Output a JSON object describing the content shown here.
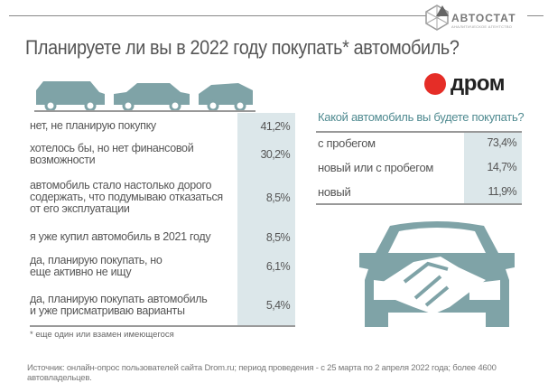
{
  "header": {
    "brand": "АВТОСТАТ",
    "brand_sub": "АНАЛИТИЧЕСКОЕ АГЕНТСТВО",
    "title": "Планируете ли вы в 2022 году покупать* автомобиль?",
    "partner": "дром"
  },
  "colors": {
    "teal": "#7fa3a7",
    "shade": "#dce7ea",
    "accent_text": "#4f8a90",
    "drom_red": "#e52d27"
  },
  "chart_data": [
    {
      "type": "table",
      "title": "Планируете ли вы в 2022 году покупать* автомобиль?",
      "rows": [
        {
          "label": "нет, не планирую покупку",
          "value": "41,2%"
        },
        {
          "label": "хотелось бы, но нет финансовой возможности",
          "value": "30,2%"
        },
        {
          "label": "автомобиль стало настолько дорого содержать, что подумываю отказаться от его эксплуатации",
          "value": "8,5%"
        },
        {
          "label": "я уже купил автомобиль в 2021 году",
          "value": "8,5%"
        },
        {
          "label": "да, планирую покупать, но еще активно не ищу",
          "value": "6,1%"
        },
        {
          "label": "да, планирую покупать автомобиль и уже присматриваю варианты",
          "value": "5,4%"
        }
      ]
    },
    {
      "type": "table",
      "title": "Какой автомобиль вы будете покупать?",
      "rows": [
        {
          "label": "с пробегом",
          "value": "73,4%"
        },
        {
          "label": "новый или с пробегом",
          "value": "14,7%"
        },
        {
          "label": "новый",
          "value": "11,9%"
        }
      ]
    }
  ],
  "footnote": "* еще один или взамен имеющегося",
  "source": "Источник: онлайн-опрос пользователей сайта Drom.ru; период проведения - с 25 марта по 2 апреля 2022 года; более 4600 автовладельцев."
}
